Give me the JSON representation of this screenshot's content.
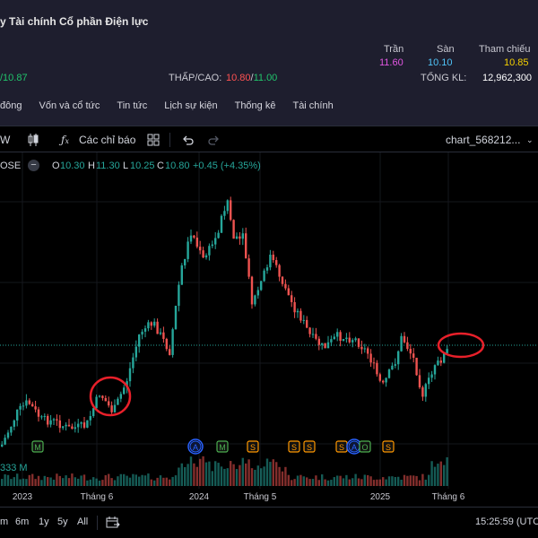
{
  "info": {
    "company": "y Tài chính Cổ phần Điện lực",
    "ceiling_label": "Trần",
    "floor_label": "Sàn",
    "reference_label": "Tham chiếu",
    "ceiling_value": "11.60",
    "floor_value": "10.10",
    "reference_value": "10.85",
    "price": "/10.87",
    "lowhigh_label": "THẤP/CAO:",
    "low": "10.80",
    "high": "11.00",
    "volume_label": "TỔNG KL:",
    "volume_value": "12,962,300"
  },
  "tabs": [
    "đông",
    "Vốn và cổ tức",
    "Tin tức",
    "Lịch sự kiện",
    "Thống kê",
    "Tài chính"
  ],
  "toolbar": {
    "interval": "W",
    "indicators_label": "Các chỉ báo",
    "chart_name": "chart_568212..."
  },
  "legend": {
    "symbol": "OSE",
    "o_label": "O",
    "o_value": "10.30",
    "h_label": "H",
    "h_value": "11.30",
    "l_label": "L",
    "l_value": "10.25",
    "c_label": "C",
    "c_value": "10.80",
    "change": "+0.45 (+4.35%)",
    "volume": "333 M"
  },
  "x_labels": [
    "2023",
    "Tháng 6",
    "2024",
    "Tháng 5",
    "2025",
    "Tháng 6"
  ],
  "events": [
    {
      "letter": "M",
      "kind": "M"
    },
    {
      "letter": "A",
      "kind": "A"
    },
    {
      "letter": "A",
      "kind": "A"
    },
    {
      "letter": "M",
      "kind": "M"
    },
    {
      "letter": "S",
      "kind": "S"
    },
    {
      "letter": "S",
      "kind": "S"
    },
    {
      "letter": "S",
      "kind": "S"
    },
    {
      "letter": "S",
      "kind": "S"
    },
    {
      "letter": "A",
      "kind": "A"
    },
    {
      "letter": "O",
      "kind": "M"
    },
    {
      "letter": "S",
      "kind": "S"
    }
  ],
  "ranges": [
    "m",
    "6m",
    "1y",
    "5y",
    "All"
  ],
  "clock": "15:25:59 (UTC",
  "colors": {
    "up": "#26a69a",
    "down": "#ef5350",
    "circle": "#e8202a",
    "event_M": "#4caf50",
    "event_A": "#2962ff",
    "event_S": "#ff9800"
  }
}
